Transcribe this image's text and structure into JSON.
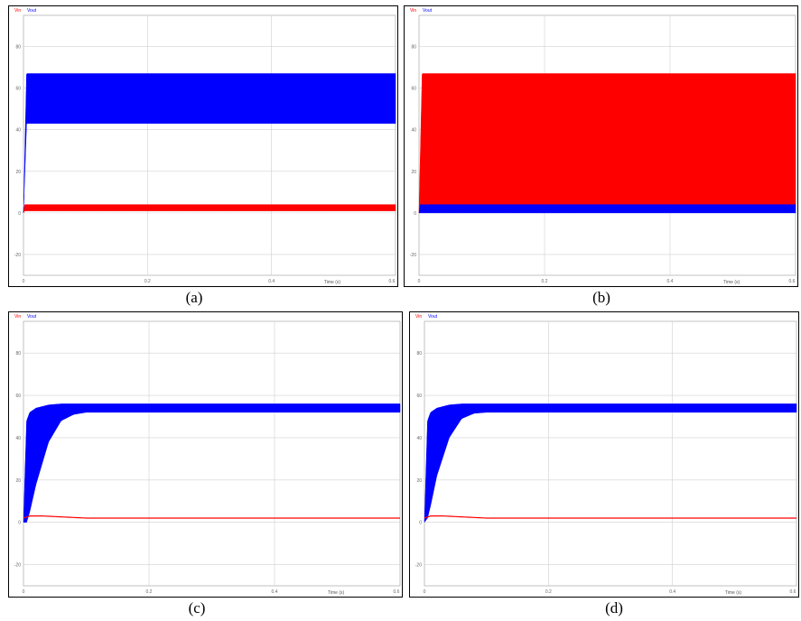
{
  "chart_data": [
    {
      "type": "area",
      "caption": "(a)",
      "xlabel": "Time (s)",
      "x_ticks": [
        "0",
        "0.2",
        "0.4",
        "0.6"
      ],
      "y_ticks": [
        "80",
        "60",
        "40",
        "20",
        "0",
        "-20"
      ],
      "xlim": [
        0,
        0.6
      ],
      "ylim": [
        -30,
        95
      ],
      "legend": [
        "Vin",
        "Vout"
      ],
      "series": [
        {
          "name": "Vout",
          "color": "#0000ff",
          "kind": "band",
          "rise_end": 0.005,
          "t": [
            0,
            0.005,
            0.6
          ],
          "lower": [
            0,
            43,
            43
          ],
          "upper": [
            0,
            67,
            67
          ]
        },
        {
          "name": "Vin",
          "color": "#ff0000",
          "kind": "band",
          "rise_end": 0.002,
          "t": [
            0,
            0.002,
            0.6
          ],
          "lower": [
            0,
            1,
            1
          ],
          "upper": [
            0,
            4,
            4
          ]
        }
      ]
    },
    {
      "type": "area",
      "caption": "(b)",
      "xlabel": "Time (s)",
      "x_ticks": [
        "0",
        "0.2",
        "0.4",
        "0.6"
      ],
      "y_ticks": [
        "80",
        "60",
        "40",
        "20",
        "0",
        "-20"
      ],
      "xlim": [
        0,
        0.6
      ],
      "ylim": [
        -30,
        95
      ],
      "legend": [
        "Vin",
        "Vout"
      ],
      "series": [
        {
          "name": "Vin",
          "color": "#ff0000",
          "kind": "band",
          "rise_end": 0.005,
          "t": [
            0,
            0.005,
            0.6
          ],
          "lower": [
            0,
            3,
            3
          ],
          "upper": [
            0,
            67,
            67
          ]
        },
        {
          "name": "Vout",
          "color": "#0000ff",
          "kind": "band",
          "rise_end": 0.002,
          "t": [
            0,
            0.002,
            0.6
          ],
          "lower": [
            0,
            0,
            0
          ],
          "upper": [
            0,
            4,
            4
          ]
        }
      ]
    },
    {
      "type": "area",
      "caption": "(c)",
      "xlabel": "Time (s)",
      "x_ticks": [
        "0",
        "0.2",
        "0.4",
        "0.6"
      ],
      "y_ticks": [
        "80",
        "60",
        "40",
        "20",
        "0",
        "-20"
      ],
      "xlim": [
        0,
        0.6
      ],
      "ylim": [
        -30,
        95
      ],
      "legend": [
        "Vin",
        "Vout"
      ],
      "series": [
        {
          "name": "Vout",
          "color": "#0000ff",
          "kind": "envelope",
          "t": [
            0,
            0.005,
            0.01,
            0.02,
            0.04,
            0.06,
            0.08,
            0.1,
            0.12,
            0.6
          ],
          "lower": [
            0,
            0,
            5,
            18,
            38,
            48,
            51,
            52,
            52,
            52
          ],
          "upper": [
            0,
            48,
            52,
            54,
            55.5,
            56,
            56,
            56,
            56,
            56
          ]
        },
        {
          "name": "Vin",
          "color": "#ff0000",
          "kind": "line",
          "t": [
            0,
            0.01,
            0.03,
            0.1,
            0.6
          ],
          "y": [
            2,
            3,
            3,
            2,
            2
          ]
        }
      ]
    },
    {
      "type": "area",
      "caption": "(d)",
      "xlabel": "Time (s)",
      "x_ticks": [
        "0",
        "0.2",
        "0.4",
        "0.6"
      ],
      "y_ticks": [
        "80",
        "60",
        "40",
        "20",
        "0",
        "-20"
      ],
      "xlim": [
        0,
        0.6
      ],
      "ylim": [
        -30,
        95
      ],
      "legend": [
        "Vin",
        "Vout"
      ],
      "series": [
        {
          "name": "Vout",
          "color": "#0000ff",
          "kind": "envelope",
          "t": [
            0,
            0.005,
            0.01,
            0.02,
            0.04,
            0.06,
            0.08,
            0.1,
            0.12,
            0.6
          ],
          "lower": [
            0,
            2,
            8,
            22,
            40,
            49,
            51.5,
            52,
            52,
            52
          ],
          "upper": [
            0,
            48,
            52,
            54,
            55.5,
            56,
            56,
            56,
            56,
            56
          ]
        },
        {
          "name": "Vin",
          "color": "#ff0000",
          "kind": "line",
          "t": [
            0,
            0.01,
            0.03,
            0.1,
            0.6
          ],
          "y": [
            2,
            3,
            3,
            2,
            2
          ]
        }
      ]
    }
  ]
}
